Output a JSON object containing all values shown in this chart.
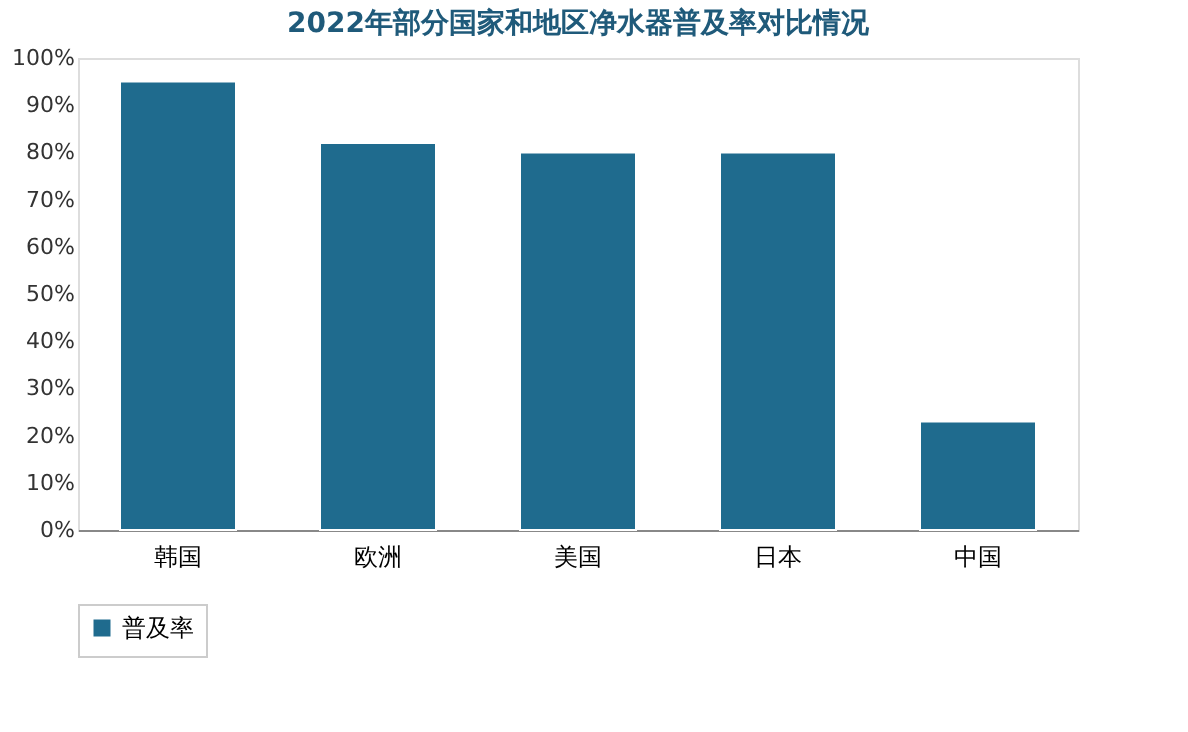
{
  "chart_data": {
    "type": "bar",
    "title": "2022年部分国家和地区净水器普及率对比情况",
    "categories": [
      "韩国",
      "欧洲",
      "美国",
      "日本",
      "中国"
    ],
    "series": [
      {
        "name": "普及率",
        "color": "#1f6b8e",
        "values": [
          95,
          82,
          80,
          80,
          23
        ]
      }
    ],
    "ylim": [
      0,
      100
    ],
    "yticks": [
      {
        "value": 0,
        "label": "0%"
      },
      {
        "value": 10,
        "label": "10%"
      },
      {
        "value": 20,
        "label": "20%"
      },
      {
        "value": 30,
        "label": "30%"
      },
      {
        "value": 40,
        "label": "40%"
      },
      {
        "value": 50,
        "label": "50%"
      },
      {
        "value": 60,
        "label": "60%"
      },
      {
        "value": 70,
        "label": "70%"
      },
      {
        "value": 80,
        "label": "80%"
      },
      {
        "value": 90,
        "label": "90%"
      },
      {
        "value": 100,
        "label": "100%"
      }
    ],
    "grid": false,
    "legend": "bottom"
  }
}
